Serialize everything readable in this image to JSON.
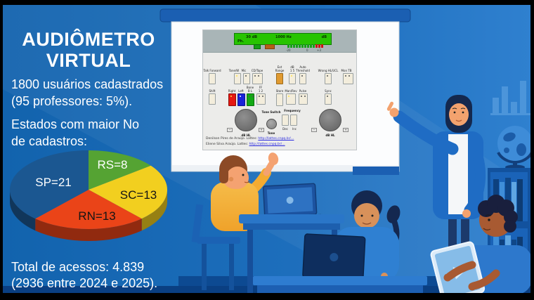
{
  "frame": {
    "background": "#000000"
  },
  "slide": {
    "title_line1": "AUDIÔMETRO",
    "title_line2": "VIRTUAL",
    "stats_users_line1": "1800 usuários cadastrados",
    "stats_users_line2": "(95 professores: 5%).",
    "states_heading_line1": "Estados com maior No",
    "states_heading_line2": "de cadastros:",
    "total_line1": "Total de acessos: 4.839",
    "total_line2": "(2936 entre 2024 e 2025).",
    "background_left": "#1465b0",
    "background_right": "#2f80cf",
    "bottom_band": "#0a3f82"
  },
  "chart_data": {
    "type": "pie",
    "style": "3d-pie",
    "title": "Estados com maior No de cadastros",
    "start_angle_deg": -90,
    "direction": "clockwise",
    "categories": [
      "RS",
      "SC",
      "RN",
      "SP"
    ],
    "values": [
      8,
      13,
      13,
      21
    ],
    "labels": [
      "RS=8",
      "SC=13",
      "RN=13",
      "SP=21"
    ],
    "colors": [
      "#55a333",
      "#f2cf1f",
      "#ea4418",
      "#1b5791"
    ],
    "label_text_colors": [
      "#ffffff",
      "#151515",
      "#151515",
      "#ffffff"
    ],
    "legend": "none",
    "grid": "off"
  },
  "audiometer": {
    "display": {
      "level": "30 dB",
      "frequency": "1000 Hz",
      "unit": "dB",
      "mode": "Ph."
    },
    "meter": {
      "min": "-20",
      "mid": "0",
      "max": "+3"
    },
    "buttons_row1": [
      "Talk Forward",
      "Tone/W",
      "Mic",
      "CD/Tape",
      "Ext\nRange",
      "dB\n1 5",
      "Auto\nThreshold",
      "Wrong HL/UCL",
      "Mon TB"
    ],
    "buttons_row2": [
      "Shift",
      "Right",
      "Left",
      "Bone\nB L",
      "FF\n1 2",
      "Store",
      "Man/Rev",
      "Pulse",
      "Sync"
    ],
    "knobs": {
      "left_label": "dB HL",
      "right_label": "dB HL",
      "minus": "−",
      "plus": "+",
      "tone_switch": "Tone Switch",
      "tone": "Tone",
      "frequency": "Frequency",
      "dec": "Dec",
      "inc": "Inc"
    },
    "credits": [
      {
        "name": "Denilson Pires de Araújo. Lattes:",
        "url": "http://lattes.cnpq.br/…"
      },
      {
        "name": "Eliene Silva Araújo. Lattes:",
        "url": "http://lattes.cnpq.br/…"
      }
    ]
  },
  "icons": {
    "play_icon": "play-triangle",
    "globe_icon": "globe",
    "bar_chart_icon": "bar-chart"
  }
}
